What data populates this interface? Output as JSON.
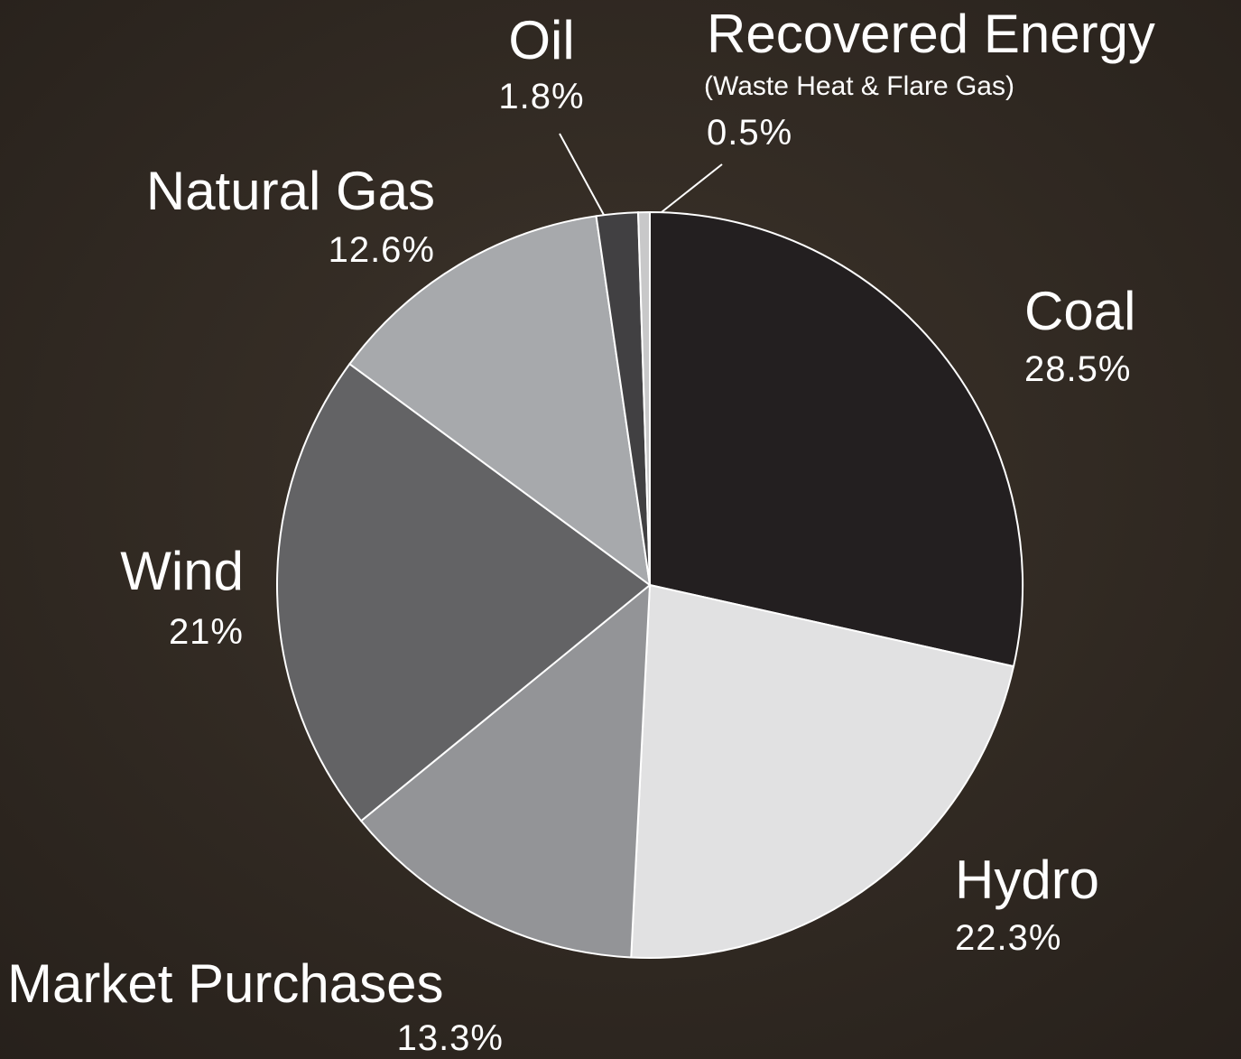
{
  "chart_data": {
    "type": "pie",
    "categories": [
      "Coal",
      "Hydro",
      "Market Purchases",
      "Wind",
      "Natural Gas",
      "Oil",
      "Recovered Energy"
    ],
    "values": [
      28.5,
      22.3,
      13.3,
      21,
      12.6,
      1.8,
      0.5
    ],
    "value_labels": [
      "28.5%",
      "22.3%",
      "13.3%",
      "21%",
      "12.6%",
      "1.8%",
      "0.5%"
    ],
    "colors": [
      "#231f20",
      "#e1e1e2",
      "#939497",
      "#636365",
      "#a7a9ac",
      "#414042",
      "#c8c8c9"
    ],
    "annotation": "(Waste Heat & Flare Gas)"
  }
}
